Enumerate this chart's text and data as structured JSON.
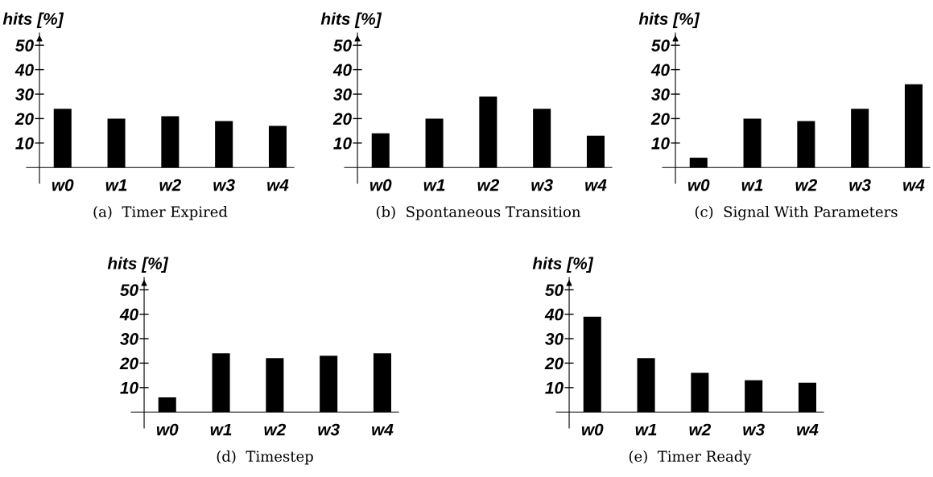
{
  "chart_data": [
    {
      "type": "bar",
      "title": "(a)  Timer Expired",
      "ylabel": "hits [%]",
      "categories": [
        "w0",
        "w1",
        "w2",
        "w3",
        "w4"
      ],
      "values": [
        24,
        20,
        21,
        19,
        17
      ],
      "color": "#000000",
      "ylim": [
        -6.5,
        55
      ],
      "yticks": [
        10,
        20,
        30,
        40,
        50
      ],
      "grid": false,
      "legend": false
    },
    {
      "type": "bar",
      "title": "(b)  Spontaneous Transition",
      "ylabel": "hits [%]",
      "categories": [
        "w0",
        "w1",
        "w2",
        "w3",
        "w4"
      ],
      "values": [
        14,
        20,
        29,
        24,
        13
      ],
      "color": "#000000",
      "ylim": [
        -6.5,
        55
      ],
      "yticks": [
        10,
        20,
        30,
        40,
        50
      ],
      "grid": false,
      "legend": false
    },
    {
      "type": "bar",
      "title": "(c)  Signal With Parameters",
      "ylabel": "hits [%]",
      "categories": [
        "w0",
        "w1",
        "w2",
        "w3",
        "w4"
      ],
      "values": [
        4,
        20,
        19,
        24,
        34
      ],
      "color": "#000000",
      "ylim": [
        -6.5,
        55
      ],
      "yticks": [
        10,
        20,
        30,
        40,
        50
      ],
      "grid": false,
      "legend": false
    },
    {
      "type": "bar",
      "title": "(d)  Timestep",
      "ylabel": "hits [%]",
      "categories": [
        "w0",
        "w1",
        "w2",
        "w3",
        "w4"
      ],
      "values": [
        6,
        24,
        22,
        23,
        24
      ],
      "color": "#000000",
      "ylim": [
        -6.5,
        55
      ],
      "yticks": [
        10,
        20,
        30,
        40,
        50
      ],
      "grid": false,
      "legend": false
    },
    {
      "type": "bar",
      "title": "(e)  Timer Ready",
      "ylabel": "hits [%]",
      "categories": [
        "w0",
        "w1",
        "w2",
        "w3",
        "w4"
      ],
      "values": [
        39,
        22,
        16,
        13,
        12
      ],
      "color": "#000000",
      "ylim": [
        -6.5,
        55
      ],
      "yticks": [
        10,
        20,
        30,
        40,
        50
      ],
      "grid": false,
      "legend": false
    }
  ]
}
